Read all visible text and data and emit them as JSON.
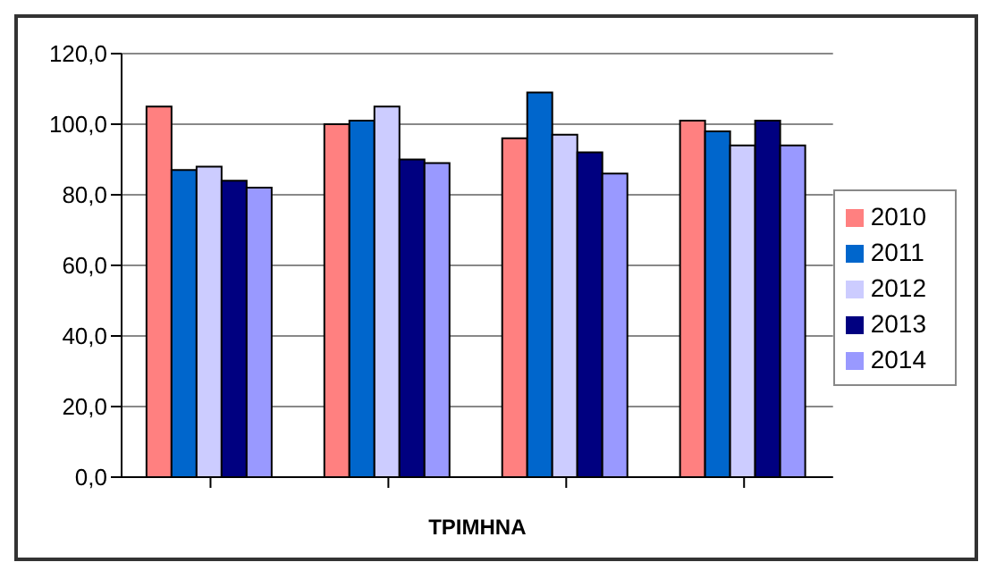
{
  "chart_data": {
    "type": "bar",
    "xlabel": "ΤΡΙΜΗΝΑ",
    "categories": [
      null,
      null,
      null,
      null
    ],
    "series": [
      {
        "name": "2010",
        "color": "#ff8080",
        "values": [
          105,
          100,
          96,
          101
        ]
      },
      {
        "name": "2011",
        "color": "#0066cc",
        "values": [
          87,
          101,
          109,
          98
        ]
      },
      {
        "name": "2012",
        "color": "#ccccff",
        "values": [
          88,
          105,
          97,
          94
        ]
      },
      {
        "name": "2013",
        "color": "#000080",
        "values": [
          84,
          90,
          92,
          101
        ]
      },
      {
        "name": "2014",
        "color": "#9999ff",
        "values": [
          82,
          89,
          86,
          94
        ]
      }
    ],
    "ylim": [
      0,
      120
    ],
    "yticks": [
      {
        "value": 0,
        "label": "0,0"
      },
      {
        "value": 20,
        "label": "20,0"
      },
      {
        "value": 40,
        "label": "40,0"
      },
      {
        "value": 60,
        "label": "60,0"
      },
      {
        "value": 80,
        "label": "80,0"
      },
      {
        "value": 100,
        "label": "100,0"
      },
      {
        "value": 120,
        "label": "120,0"
      }
    ],
    "grid": "y",
    "legend": "right"
  }
}
